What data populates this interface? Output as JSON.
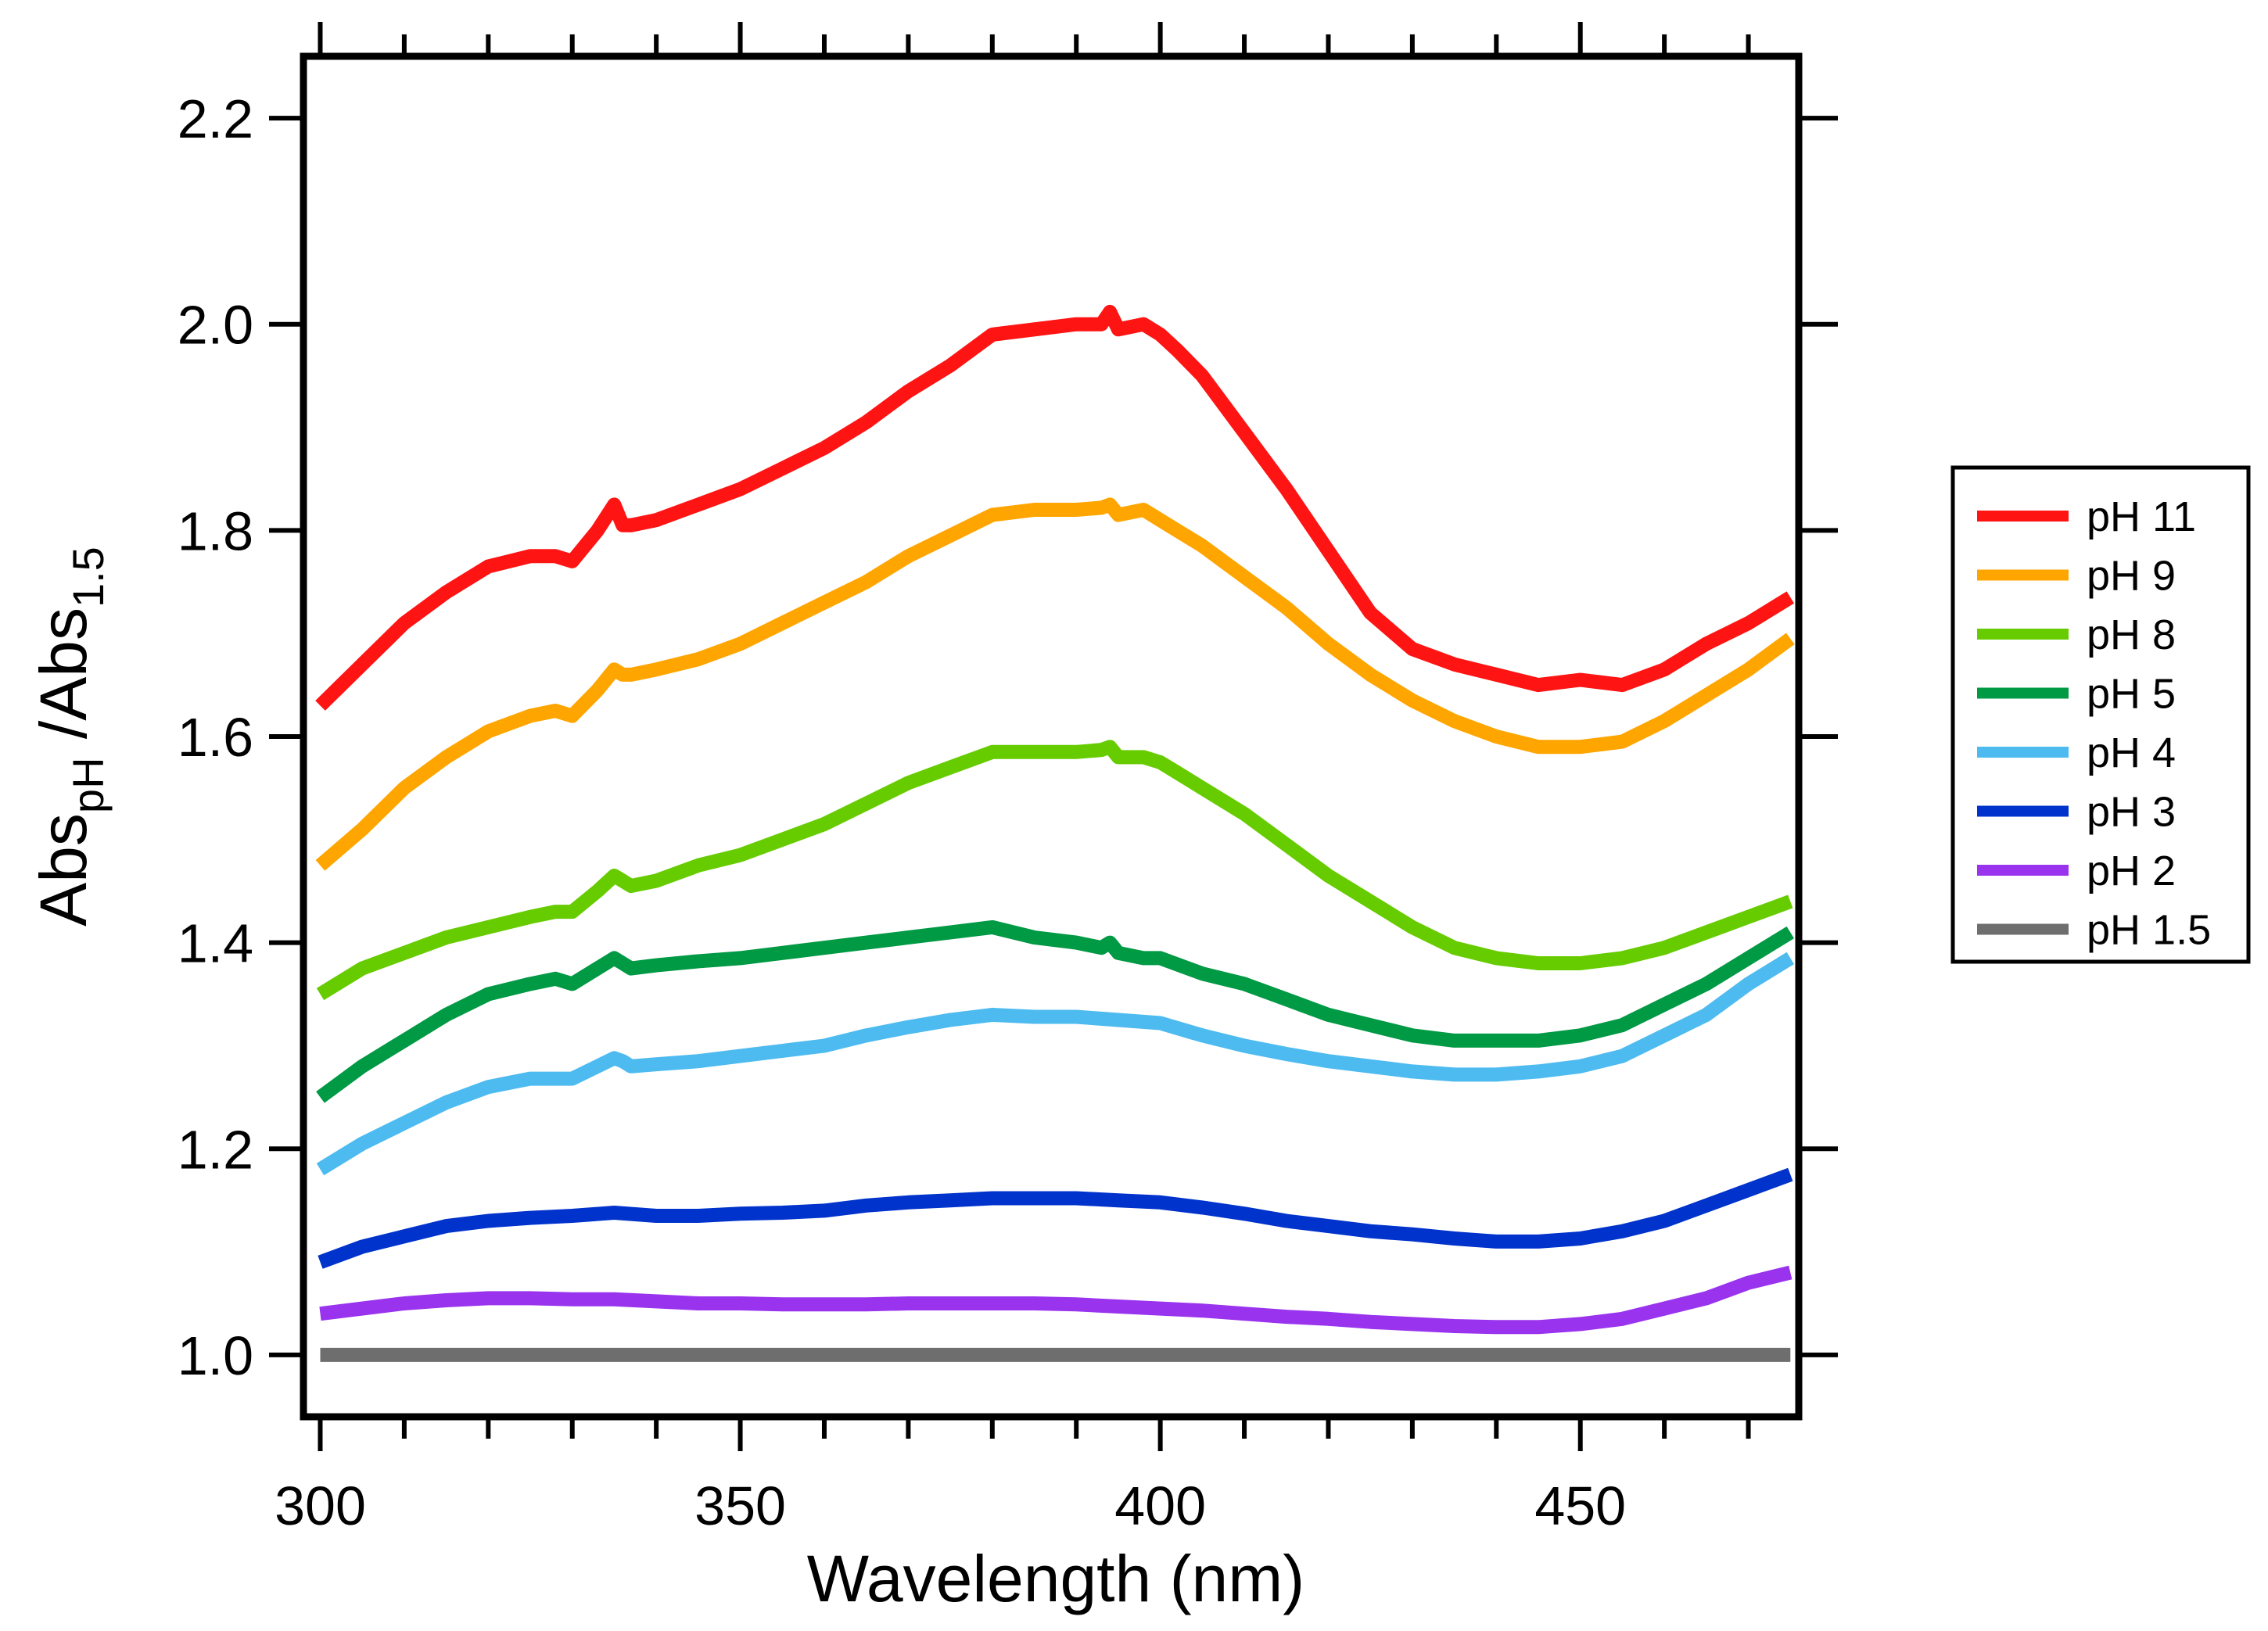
{
  "chart_data": {
    "type": "line",
    "xlabel": "Wavelength (nm)",
    "ylabel": {
      "parts": [
        {
          "text": "Abs",
          "sub": false
        },
        {
          "text": "pH",
          "sub": true
        },
        {
          "text": " /Abs",
          "sub": false
        },
        {
          "text": "1.5",
          "sub": true
        }
      ]
    },
    "xlim": [
      298,
      476
    ],
    "ylim": [
      0.94,
      2.26
    ],
    "x_ticks": [
      300,
      350,
      400,
      450
    ],
    "x_minor_step": 10,
    "y_ticks": [
      "1.0",
      "1.2",
      "1.4",
      "1.6",
      "1.8",
      "2.0",
      "2.2"
    ],
    "grid": false,
    "legend_position": "right",
    "series": [
      {
        "name": "pH 11",
        "color": "#ff1414",
        "x": [
          300,
          305,
          310,
          315,
          320,
          325,
          328,
          330,
          333,
          335,
          336,
          337,
          340,
          345,
          350,
          355,
          360,
          365,
          370,
          375,
          380,
          385,
          390,
          393,
          394,
          395,
          398,
          400,
          402,
          405,
          410,
          415,
          420,
          425,
          430,
          435,
          440,
          445,
          450,
          455,
          460,
          465,
          470,
          475
        ],
        "y": [
          1.63,
          1.67,
          1.71,
          1.74,
          1.765,
          1.775,
          1.775,
          1.77,
          1.8,
          1.825,
          1.805,
          1.805,
          1.81,
          1.825,
          1.84,
          1.86,
          1.88,
          1.905,
          1.935,
          1.96,
          1.99,
          1.995,
          2.0,
          2.0,
          2.012,
          1.995,
          2.0,
          1.99,
          1.975,
          1.95,
          1.895,
          1.84,
          1.78,
          1.72,
          1.685,
          1.67,
          1.66,
          1.65,
          1.655,
          1.65,
          1.665,
          1.69,
          1.71,
          1.735
        ]
      },
      {
        "name": "pH 9",
        "color": "#ffa500",
        "x": [
          300,
          305,
          310,
          315,
          320,
          325,
          328,
          330,
          333,
          335,
          336,
          337,
          340,
          345,
          350,
          355,
          360,
          365,
          370,
          375,
          380,
          385,
          390,
          393,
          394,
          395,
          398,
          400,
          402,
          405,
          410,
          415,
          420,
          425,
          430,
          435,
          440,
          445,
          450,
          455,
          460,
          465,
          470,
          475
        ],
        "y": [
          1.475,
          1.51,
          1.55,
          1.58,
          1.605,
          1.62,
          1.625,
          1.62,
          1.645,
          1.665,
          1.66,
          1.66,
          1.665,
          1.675,
          1.69,
          1.71,
          1.73,
          1.75,
          1.775,
          1.795,
          1.815,
          1.82,
          1.82,
          1.822,
          1.825,
          1.815,
          1.82,
          1.81,
          1.8,
          1.785,
          1.755,
          1.725,
          1.69,
          1.66,
          1.635,
          1.615,
          1.6,
          1.59,
          1.59,
          1.595,
          1.615,
          1.64,
          1.665,
          1.695
        ]
      },
      {
        "name": "pH 8",
        "color": "#66cc00",
        "x": [
          300,
          305,
          310,
          315,
          320,
          325,
          328,
          330,
          333,
          335,
          336,
          337,
          340,
          345,
          350,
          355,
          360,
          365,
          370,
          375,
          380,
          385,
          390,
          393,
          394,
          395,
          398,
          400,
          402,
          405,
          410,
          415,
          420,
          425,
          430,
          435,
          440,
          445,
          450,
          455,
          460,
          465,
          470,
          475
        ],
        "y": [
          1.35,
          1.375,
          1.39,
          1.405,
          1.415,
          1.425,
          1.43,
          1.43,
          1.45,
          1.465,
          1.46,
          1.455,
          1.46,
          1.475,
          1.485,
          1.5,
          1.515,
          1.535,
          1.555,
          1.57,
          1.585,
          1.585,
          1.585,
          1.587,
          1.59,
          1.58,
          1.58,
          1.575,
          1.565,
          1.55,
          1.525,
          1.495,
          1.465,
          1.44,
          1.415,
          1.395,
          1.385,
          1.38,
          1.38,
          1.385,
          1.395,
          1.41,
          1.425,
          1.44
        ]
      },
      {
        "name": "pH 5",
        "color": "#009944",
        "x": [
          300,
          305,
          310,
          315,
          320,
          325,
          328,
          330,
          333,
          335,
          336,
          337,
          340,
          345,
          350,
          355,
          360,
          365,
          370,
          375,
          380,
          385,
          390,
          393,
          394,
          395,
          398,
          400,
          405,
          410,
          415,
          420,
          425,
          430,
          435,
          440,
          445,
          450,
          455,
          460,
          465,
          470,
          475
        ],
        "y": [
          1.25,
          1.28,
          1.305,
          1.33,
          1.35,
          1.36,
          1.365,
          1.36,
          1.375,
          1.385,
          1.38,
          1.375,
          1.378,
          1.382,
          1.385,
          1.39,
          1.395,
          1.4,
          1.405,
          1.41,
          1.415,
          1.405,
          1.4,
          1.395,
          1.4,
          1.39,
          1.385,
          1.385,
          1.37,
          1.36,
          1.345,
          1.33,
          1.32,
          1.31,
          1.305,
          1.305,
          1.305,
          1.31,
          1.32,
          1.34,
          1.36,
          1.385,
          1.41
        ]
      },
      {
        "name": "pH 4",
        "color": "#4dbbf0",
        "x": [
          300,
          305,
          310,
          315,
          320,
          325,
          330,
          333,
          335,
          336,
          337,
          340,
          345,
          350,
          355,
          360,
          365,
          370,
          375,
          380,
          385,
          390,
          395,
          400,
          405,
          410,
          415,
          420,
          425,
          430,
          435,
          440,
          445,
          450,
          455,
          460,
          465,
          470,
          475
        ],
        "y": [
          1.18,
          1.205,
          1.225,
          1.245,
          1.26,
          1.268,
          1.268,
          1.28,
          1.288,
          1.285,
          1.28,
          1.282,
          1.285,
          1.29,
          1.295,
          1.3,
          1.31,
          1.318,
          1.325,
          1.33,
          1.328,
          1.328,
          1.325,
          1.322,
          1.31,
          1.3,
          1.292,
          1.285,
          1.28,
          1.275,
          1.272,
          1.272,
          1.275,
          1.28,
          1.29,
          1.31,
          1.33,
          1.36,
          1.385
        ]
      },
      {
        "name": "pH 3",
        "color": "#0033cc",
        "x": [
          300,
          305,
          310,
          315,
          320,
          325,
          330,
          335,
          340,
          345,
          350,
          355,
          360,
          365,
          370,
          375,
          380,
          385,
          390,
          395,
          400,
          405,
          410,
          415,
          420,
          425,
          430,
          435,
          440,
          445,
          450,
          455,
          460,
          465,
          470,
          475
        ],
        "y": [
          1.09,
          1.105,
          1.115,
          1.125,
          1.13,
          1.133,
          1.135,
          1.138,
          1.135,
          1.135,
          1.137,
          1.138,
          1.14,
          1.145,
          1.148,
          1.15,
          1.152,
          1.152,
          1.152,
          1.15,
          1.148,
          1.143,
          1.137,
          1.13,
          1.125,
          1.12,
          1.117,
          1.113,
          1.11,
          1.11,
          1.113,
          1.12,
          1.13,
          1.145,
          1.16,
          1.175
        ]
      },
      {
        "name": "pH 2",
        "color": "#9933ee",
        "x": [
          300,
          305,
          310,
          315,
          320,
          325,
          330,
          335,
          340,
          345,
          350,
          355,
          360,
          365,
          370,
          375,
          380,
          385,
          390,
          395,
          400,
          405,
          410,
          415,
          420,
          425,
          430,
          435,
          440,
          445,
          450,
          455,
          460,
          465,
          470,
          475
        ],
        "y": [
          1.04,
          1.045,
          1.05,
          1.053,
          1.055,
          1.055,
          1.054,
          1.054,
          1.052,
          1.05,
          1.05,
          1.049,
          1.049,
          1.049,
          1.05,
          1.05,
          1.05,
          1.05,
          1.049,
          1.047,
          1.045,
          1.043,
          1.04,
          1.037,
          1.035,
          1.032,
          1.03,
          1.028,
          1.027,
          1.027,
          1.03,
          1.035,
          1.045,
          1.055,
          1.07,
          1.08
        ]
      },
      {
        "name": "pH 1.5",
        "color": "#6e6e6e",
        "x": [
          300,
          475
        ],
        "y": [
          1.0,
          1.0
        ]
      }
    ]
  }
}
